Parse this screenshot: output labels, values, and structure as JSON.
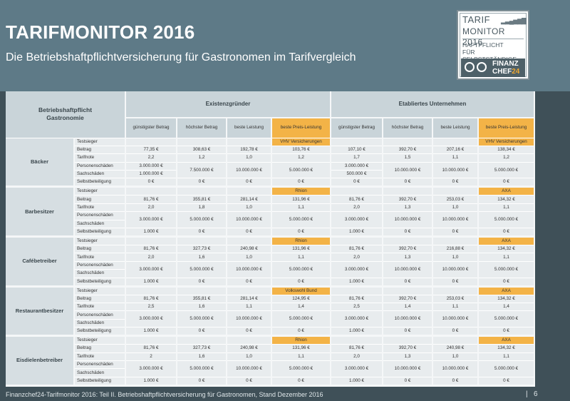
{
  "header": {
    "title": "TARIFMONITOR 2016",
    "subtitle": "Die Betriebshaftpflichtversicherung für Gastronomen im Tarifvergleich"
  },
  "logo": {
    "line1": "TARIF",
    "line2": "MONITOR",
    "year": "2016",
    "line3": "HAFTPFLICHT",
    "line4": "FÜR SELBSTSTÄNDIGE",
    "brand1": "FINANZ",
    "brand2": "CHEF",
    "brand3": "24"
  },
  "table": {
    "corner": [
      "Betriebshaftpflicht",
      "Gastronomie"
    ],
    "groups": [
      "Existenzgründer",
      "Etabliertes Unternehmen"
    ],
    "columns": [
      "günstigster Betrag",
      "höchster Betrag",
      "beste Leistung",
      "beste Preis-Leistung",
      "günstigster Betrag",
      "höchster Betrag",
      "beste Leistung",
      "beste Preis-Leistung"
    ],
    "row_labels": [
      "Testsieger",
      "Beitrag",
      "Tarifnote",
      "Personenschäden",
      "Sachschäden",
      "Selbstbeteiligung"
    ],
    "sections": [
      {
        "name": "Bäcker",
        "sieger_e": "VHV Versicherungen",
        "sieger_u": "VHV Versicherungen",
        "beitrag": [
          "77,35 €",
          "308,63 €",
          "192,78 €",
          "103,76 €",
          "107,10 €",
          "392,70 €",
          "207,16 €",
          "138,34 €"
        ],
        "note": [
          "2,2",
          "1,2",
          "1,0",
          "1,2",
          "1,7",
          "1,5",
          "1,1",
          "1,2"
        ],
        "personen": [
          "3.000.000 €",
          "",
          "",
          "",
          "3.000.000 €",
          "",
          "",
          ""
        ],
        "merged": [
          "",
          "7.500.000 €",
          "10.000.000 €",
          "5.000.000 €",
          "",
          "10.000.000 €",
          "10.000.000 €",
          "5.000.000 €"
        ],
        "sach": [
          "1.000.000 €",
          "",
          "",
          "",
          "500.000 €",
          "",
          "",
          ""
        ],
        "sb": [
          "0 €",
          "0 €",
          "0 €",
          "0 €",
          "0 €",
          "0 €",
          "0 €",
          "0 €"
        ]
      },
      {
        "name": "Barbesitzer",
        "sieger_e": "Rhion",
        "sieger_u": "AXA",
        "beitrag": [
          "81,76 €",
          "355,81 €",
          "281,14 €",
          "131,96 €",
          "81,76 €",
          "392,70 €",
          "253,03 €",
          "134,32 €"
        ],
        "note": [
          "2,0",
          "1,8",
          "1,0",
          "1,1",
          "2,0",
          "1,3",
          "1,0",
          "1,1"
        ],
        "personen": [
          "",
          "",
          "",
          "",
          "",
          "",
          "",
          ""
        ],
        "merged": [
          "3.000.000 €",
          "5.000.000 €",
          "10.000.000 €",
          "5.000.000 €",
          "3.000.000 €",
          "10.000.000 €",
          "10.000.000 €",
          "5.000.000 €"
        ],
        "sach": [
          "",
          "",
          "",
          "",
          "",
          "",
          "",
          ""
        ],
        "sb": [
          "1.000 €",
          "0 €",
          "0 €",
          "0 €",
          "1.000 €",
          "0 €",
          "0 €",
          "0 €"
        ]
      },
      {
        "name": "Cafébetreiber",
        "sieger_e": "Rhion",
        "sieger_u": "AXA",
        "beitrag": [
          "81,76 €",
          "327,73 €",
          "240,98 €",
          "131,96 €",
          "81,76 €",
          "392,70 €",
          "216,88 €",
          "134,32 €"
        ],
        "note": [
          "2,0",
          "1,6",
          "1,0",
          "1,1",
          "2,0",
          "1,3",
          "1,0",
          "1,1"
        ],
        "personen": [
          "",
          "",
          "",
          "",
          "",
          "",
          "",
          ""
        ],
        "merged": [
          "3.000.000 €",
          "5.000.000 €",
          "10.000.000 €",
          "5.000.000 €",
          "3.000.000 €",
          "10.000.000 €",
          "10.000.000 €",
          "5.000.000 €"
        ],
        "sach": [
          "",
          "",
          "",
          "",
          "",
          "",
          "",
          ""
        ],
        "sb": [
          "1.000 €",
          "0 €",
          "0 €",
          "0 €",
          "1.000 €",
          "0 €",
          "0 €",
          "0 €"
        ]
      },
      {
        "name": "Restaurantbesitzer",
        "sieger_e": "Volkswohl Bund",
        "sieger_u": "AXA",
        "beitrag": [
          "81,76 €",
          "355,81 €",
          "281,14 €",
          "124,95 €",
          "81,76 €",
          "392,70 €",
          "253,03 €",
          "134,32 €"
        ],
        "note": [
          "2,5",
          "1,6",
          "1,1",
          "1,4",
          "2,5",
          "1,4",
          "1,1",
          "1,4"
        ],
        "personen": [
          "",
          "",
          "",
          "",
          "",
          "",
          "",
          ""
        ],
        "merged": [
          "3.000.000 €",
          "5.000.000 €",
          "10.000.000 €",
          "5.000.000 €",
          "3.000.000 €",
          "10.000.000 €",
          "10.000.000 €",
          "5.000.000 €"
        ],
        "sach": [
          "",
          "",
          "",
          "",
          "",
          "",
          "",
          ""
        ],
        "sb": [
          "1.000 €",
          "0 €",
          "0 €",
          "0 €",
          "1.000 €",
          "0 €",
          "0 €",
          "0 €"
        ]
      },
      {
        "name": "Eisdielenbetreiber",
        "sieger_e": "Rhion",
        "sieger_u": "AXA",
        "beitrag": [
          "81,76 €",
          "327,73 €",
          "240,98 €",
          "131,96 €",
          "81,76 €",
          "392,70 €",
          "240,98 €",
          "134,32 €"
        ],
        "note": [
          "2",
          "1,6",
          "1,0",
          "1,1",
          "2,0",
          "1,3",
          "1,0",
          "1,1"
        ],
        "personen": [
          "",
          "",
          "",
          "",
          "",
          "",
          "",
          ""
        ],
        "merged": [
          "3.000.000 €",
          "5.000.000 €",
          "10.000.000 €",
          "5.000.000 €",
          "3.000.000 €",
          "10.000.000 €",
          "10.000.000 €",
          "5.000.000 €"
        ],
        "sach": [
          "",
          "",
          "",
          "",
          "",
          "",
          "",
          ""
        ],
        "sb": [
          "1.000 €",
          "0 €",
          "0 €",
          "0 €",
          "1.000 €",
          "0 €",
          "0 €",
          "0 €"
        ]
      }
    ]
  },
  "footer": {
    "text": "Finanzchef24-Tarifmonitor 2016: Teil II. Betriebshaftpflichtversicherung für Gastronomen, Stand Dezember 2016",
    "sep": "|",
    "page": "6"
  },
  "colors": {
    "header_bg": "#5e7a87",
    "page_bg": "#3f5058",
    "highlight": "#f3b347",
    "table_header": "#c9d4d9"
  }
}
